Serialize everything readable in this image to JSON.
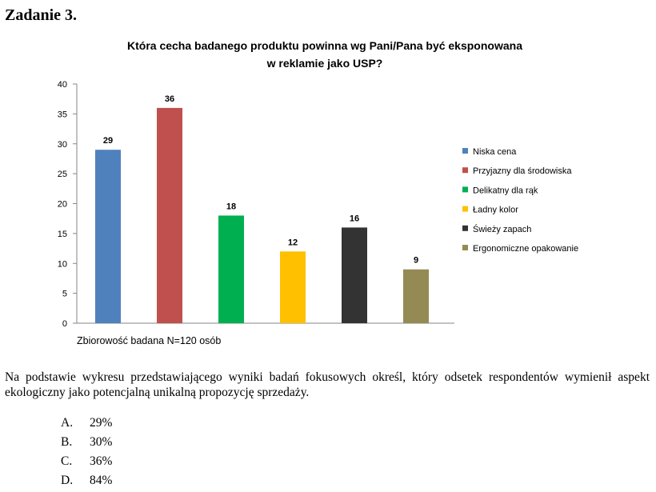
{
  "heading": "Zadanie 3.",
  "chart_data": {
    "type": "bar",
    "title_line1": "Która cecha badanego produktu powinna  wg Pani/Pana być eksponowana",
    "title_line2": "w reklamie jako USP?",
    "categories": [
      "Niska cena",
      "Przyjazny dla środowiska",
      "Delikatny dla rąk",
      "Ładny kolor",
      "Świeży zapach",
      "Ergonomiczne opakowanie"
    ],
    "values": [
      29,
      36,
      18,
      12,
      16,
      9
    ],
    "colors": [
      "#4f81bd",
      "#c0504d",
      "#00b050",
      "#ffc000",
      "#333333",
      "#948a54"
    ],
    "ylim": [
      0,
      40
    ],
    "yticks": [
      "0",
      "5",
      "10",
      "15",
      "20",
      "25",
      "30",
      "35",
      "40"
    ],
    "grid": false,
    "legend_position": "right",
    "footnote": "Zbiorowość badana N=120 osób"
  },
  "question": {
    "text": "Na podstawie wykresu przedstawiającego wyniki badań fokusowych określ, który odsetek respondentów wymienił aspekt ekologiczny jako potencjalną unikalną propozycję sprzedaży."
  },
  "answers": [
    {
      "letter": "A.",
      "text": "29%"
    },
    {
      "letter": "B.",
      "text": "30%"
    },
    {
      "letter": "C.",
      "text": "36%"
    },
    {
      "letter": "D.",
      "text": "84%"
    }
  ]
}
